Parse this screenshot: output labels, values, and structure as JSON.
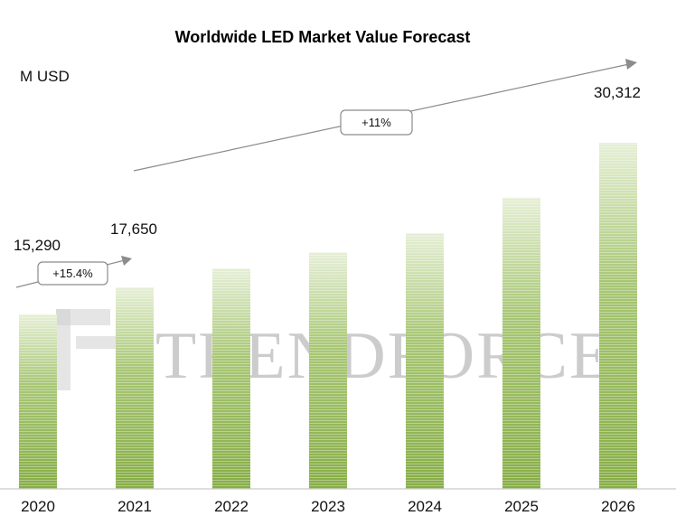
{
  "chart_data": {
    "type": "bar",
    "title": "Worldwide LED Market Value Forecast",
    "ylabel": "M USD",
    "xlabel": "",
    "categories": [
      "2020",
      "2021",
      "2022",
      "2023",
      "2024",
      "2025",
      "2026"
    ],
    "values": [
      15290,
      17650,
      19300,
      20700,
      22400,
      25500,
      30312
    ],
    "data_labels": [
      "15,290",
      "17,650",
      "",
      "",
      "",
      "",
      "30,312"
    ],
    "ylim": [
      0,
      30312
    ],
    "grid": false,
    "bar_color": "#8db34e",
    "annotations": [
      {
        "text": "+15.4%",
        "from": "2020",
        "to": "2021"
      },
      {
        "text": "+11%",
        "from": "2021",
        "to": "2026"
      }
    ]
  },
  "watermark": {
    "text": "TRENDFORCE"
  },
  "colors": {
    "bar_dark": "#86ad45",
    "bar_light": "#e3eed0",
    "arrow": "#8c8c8c"
  }
}
